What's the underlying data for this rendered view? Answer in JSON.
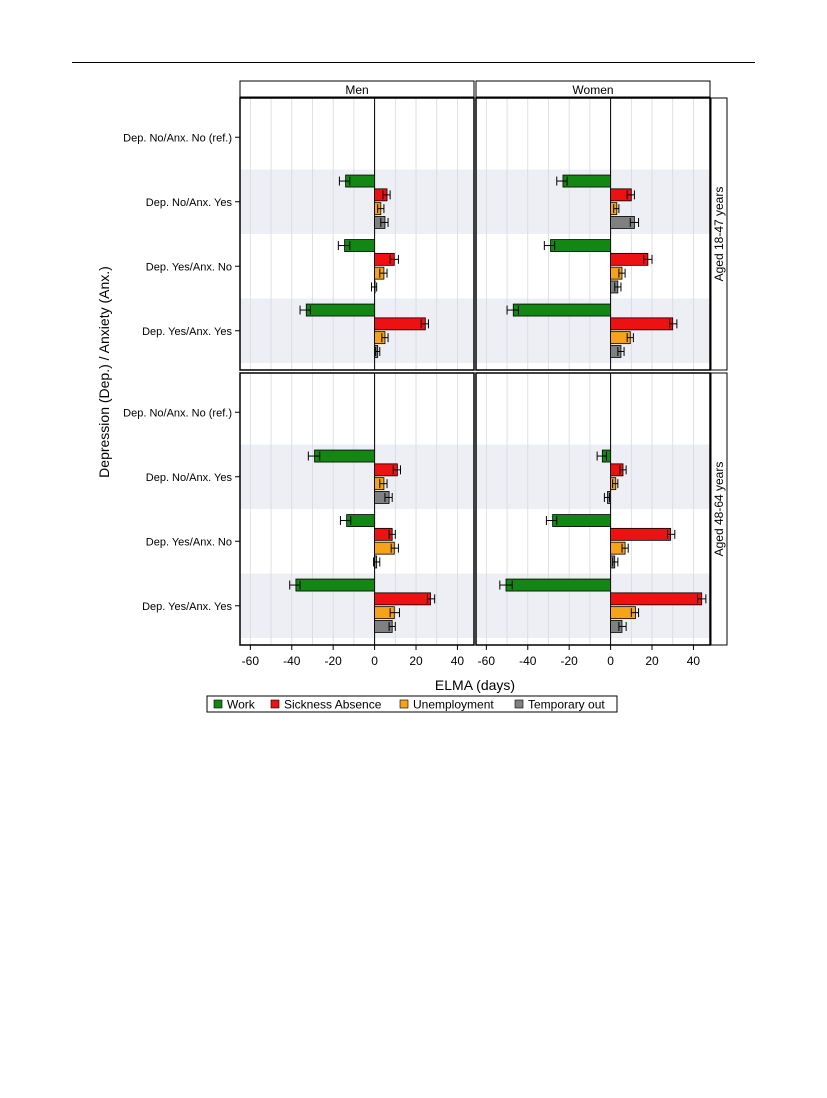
{
  "chart_data": {
    "type": "bar",
    "orientation": "horizontal",
    "xlabel": "ELMA (days)",
    "ylabel": "Depression (Dep.) / Anxiety (Anx.)",
    "xlim": [
      -65,
      48
    ],
    "xticks": [
      -60,
      -40,
      -20,
      0,
      20,
      40
    ],
    "xtick_labels": [
      "-60",
      "-40",
      "-20",
      "0",
      "20",
      "40"
    ],
    "columns": [
      "Men",
      "Women"
    ],
    "rows": [
      "Aged 18-47 years",
      "Aged 48-64 years"
    ],
    "categories": [
      "Dep. No/Anx. No (ref.)",
      "Dep. No/Anx. Yes",
      "Dep. Yes/Anx. No",
      "Dep. Yes/Anx. Yes"
    ],
    "series": [
      {
        "name": "Work",
        "color": "#138613"
      },
      {
        "name": "Sickness Absence",
        "color": "#ee1111"
      },
      {
        "name": "Unemployment",
        "color": "#f5a318"
      },
      {
        "name": "Temporary out",
        "color": "#808080"
      }
    ],
    "legend_position": "bottom",
    "grid": true,
    "panels": [
      {
        "column": "Men",
        "row": "Aged 18-47 years",
        "values": [
          {
            "category": "Dep. No/Anx. No (ref.)",
            "Work": null,
            "Sickness Absence": null,
            "Unemployment": null,
            "Temporary out": null
          },
          {
            "category": "Dep. No/Anx. Yes",
            "Work": [
              -14,
              -17,
              -12
            ],
            "Sickness Absence": [
              6,
              4,
              7.5
            ],
            "Unemployment": [
              3,
              1.5,
              4.5
            ],
            "Temporary out": [
              5,
              3,
              6.5
            ]
          },
          {
            "category": "Dep. Yes/Anx. No",
            "Work": [
              -14.5,
              -17.5,
              -12
            ],
            "Sickness Absence": [
              9.5,
              7.5,
              11.5
            ],
            "Unemployment": [
              4.5,
              2.5,
              6
            ],
            "Temporary out": [
              0,
              -1.5,
              1
            ]
          },
          {
            "category": "Dep. Yes/Anx. Yes",
            "Work": [
              -33,
              -36,
              -31
            ],
            "Sickness Absence": [
              24.5,
              22.5,
              26
            ],
            "Unemployment": [
              5,
              3.5,
              6.5
            ],
            "Temporary out": [
              1.5,
              0.5,
              2.5
            ]
          }
        ]
      },
      {
        "column": "Women",
        "row": "Aged 18-47 years",
        "values": [
          {
            "category": "Dep. No/Anx. No (ref.)",
            "Work": null,
            "Sickness Absence": null,
            "Unemployment": null,
            "Temporary out": null
          },
          {
            "category": "Dep. No/Anx. Yes",
            "Work": [
              -23,
              -26,
              -21
            ],
            "Sickness Absence": [
              10,
              8,
              11.5
            ],
            "Unemployment": [
              3,
              1.5,
              4
            ],
            "Temporary out": [
              11.5,
              9.5,
              13.5
            ]
          },
          {
            "category": "Dep. Yes/Anx. No",
            "Work": [
              -29,
              -32,
              -27
            ],
            "Sickness Absence": [
              18,
              16,
              20
            ],
            "Unemployment": [
              5.5,
              4,
              7
            ],
            "Temporary out": [
              3.5,
              2,
              5
            ]
          },
          {
            "category": "Dep. Yes/Anx. Yes",
            "Work": [
              -47,
              -50,
              -44.5
            ],
            "Sickness Absence": [
              30,
              28.5,
              32
            ],
            "Unemployment": [
              9.5,
              8,
              11
            ],
            "Temporary out": [
              5,
              3.5,
              6.5
            ]
          }
        ]
      },
      {
        "column": "Men",
        "row": "Aged 48-64 years",
        "values": [
          {
            "category": "Dep. No/Anx. No (ref.)",
            "Work": null,
            "Sickness Absence": null,
            "Unemployment": null,
            "Temporary out": null
          },
          {
            "category": "Dep. No/Anx. Yes",
            "Work": [
              -29,
              -32,
              -26.5
            ],
            "Sickness Absence": [
              11,
              9,
              12.5
            ],
            "Unemployment": [
              4.5,
              2.5,
              6
            ],
            "Temporary out": [
              7,
              5,
              8.5
            ]
          },
          {
            "category": "Dep. Yes/Anx. No",
            "Work": [
              -13.5,
              -16.5,
              -11.5
            ],
            "Sickness Absence": [
              8.5,
              7,
              10
            ],
            "Unemployment": [
              9.5,
              8,
              11.5
            ],
            "Temporary out": [
              1,
              -0.5,
              2.5
            ]
          },
          {
            "category": "Dep. Yes/Anx. Yes",
            "Work": [
              -38,
              -41,
              -36
            ],
            "Sickness Absence": [
              27,
              25.5,
              29
            ],
            "Unemployment": [
              9.5,
              7.5,
              12
            ],
            "Temporary out": [
              8.5,
              7,
              10
            ]
          }
        ]
      },
      {
        "column": "Women",
        "row": "Aged 48-64 years",
        "values": [
          {
            "category": "Dep. No/Anx. No (ref.)",
            "Work": null,
            "Sickness Absence": null,
            "Unemployment": null,
            "Temporary out": null
          },
          {
            "category": "Dep. No/Anx. Yes",
            "Work": [
              -4,
              -6.5,
              -2
            ],
            "Sickness Absence": [
              6,
              4.5,
              7.5
            ],
            "Unemployment": [
              2.5,
              1,
              3.5
            ],
            "Temporary out": [
              -1.5,
              -3,
              -0.5
            ]
          },
          {
            "category": "Dep. Yes/Anx. No",
            "Work": [
              -28,
              -31,
              -26
            ],
            "Sickness Absence": [
              29,
              27.5,
              31
            ],
            "Unemployment": [
              7,
              5.5,
              8.5
            ],
            "Temporary out": [
              2,
              1,
              3.5
            ]
          },
          {
            "category": "Dep. Yes/Anx. Yes",
            "Work": [
              -50.5,
              -53.5,
              -47.5
            ],
            "Sickness Absence": [
              44,
              42,
              46
            ],
            "Unemployment": [
              12,
              10,
              13.5
            ],
            "Temporary out": [
              5.5,
              4,
              7.5
            ]
          }
        ]
      }
    ]
  }
}
